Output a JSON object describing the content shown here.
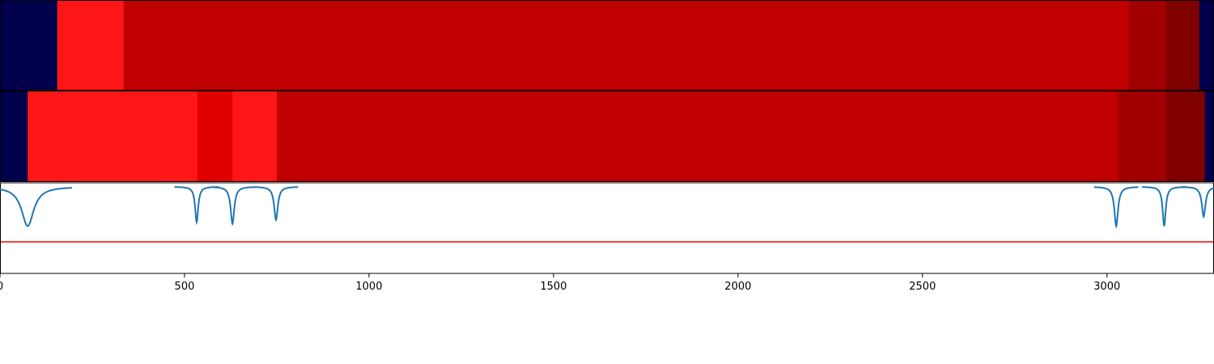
{
  "chart_data": [
    {
      "type": "heatmap",
      "xlim": [
        0,
        3290
      ],
      "segments": [
        {
          "start": 0,
          "end": 155,
          "color": "#00004c"
        },
        {
          "start": 155,
          "end": 335,
          "color": "#ff1616"
        },
        {
          "start": 335,
          "end": 3060,
          "color": "#c00000"
        },
        {
          "start": 3060,
          "end": 3160,
          "color": "#a00000"
        },
        {
          "start": 3160,
          "end": 3250,
          "color": "#800000"
        },
        {
          "start": 3250,
          "end": 3290,
          "color": "#00004c"
        }
      ]
    },
    {
      "type": "heatmap",
      "xlim": [
        0,
        3290
      ],
      "segments": [
        {
          "start": 0,
          "end": 75,
          "color": "#00004c"
        },
        {
          "start": 75,
          "end": 535,
          "color": "#ff1616"
        },
        {
          "start": 535,
          "end": 630,
          "color": "#e00000"
        },
        {
          "start": 630,
          "end": 750,
          "color": "#ff1616"
        },
        {
          "start": 750,
          "end": 3030,
          "color": "#c00000"
        },
        {
          "start": 3030,
          "end": 3160,
          "color": "#a00000"
        },
        {
          "start": 3160,
          "end": 3265,
          "color": "#800000"
        },
        {
          "start": 3265,
          "end": 3290,
          "color": "#00004c"
        }
      ]
    },
    {
      "type": "line",
      "xlim": [
        0,
        3290
      ],
      "ylim": [
        -1.1,
        0.05
      ],
      "x_ticks": [
        0,
        500,
        1000,
        1500,
        2000,
        2500,
        3000
      ],
      "x_tick_labels": [
        "0",
        "500",
        "1000",
        "1500",
        "2000",
        "2500",
        "3000"
      ],
      "threshold": {
        "y": -0.7,
        "color": "#ff0000"
      },
      "series": [
        {
          "color": "#1f77b4",
          "baseline": 0,
          "dips": [
            {
              "x": 75,
              "depth": -0.5,
              "width": 20
            },
            {
              "x": 533,
              "depth": -0.45,
              "width": 5
            },
            {
              "x": 630,
              "depth": -0.47,
              "width": 6
            },
            {
              "x": 748,
              "depth": -0.42,
              "width": 6
            },
            {
              "x": 3025,
              "depth": -0.5,
              "width": 6
            },
            {
              "x": 3155,
              "depth": -0.5,
              "width": 5
            },
            {
              "x": 3262,
              "depth": -0.38,
              "width": 6
            }
          ]
        }
      ]
    }
  ]
}
